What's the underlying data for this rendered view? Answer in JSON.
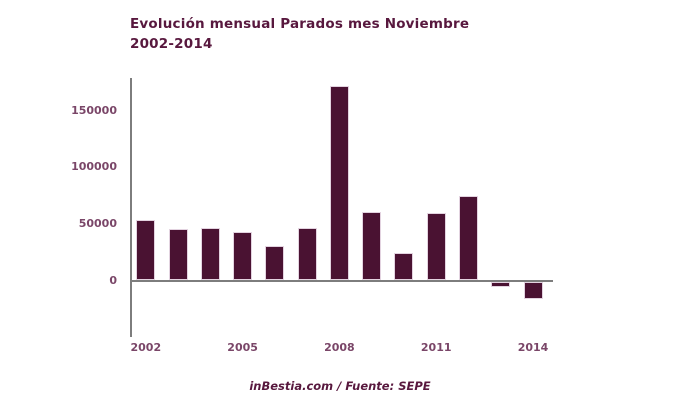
{
  "title": {
    "line1": "Evolución mensual Parados mes Noviembre",
    "line2": "2002-2014"
  },
  "footer": {
    "text": "inBestia.com / Fuente: SEPE"
  },
  "colors": {
    "bar": "#4a1232",
    "bar_border": "#e3d3e0",
    "axis": "#7d7d7d",
    "tick_label": "#7a4668",
    "title_text": "#58183e"
  },
  "chart_data": {
    "type": "bar",
    "title": "Evolución mensual Parados mes Noviembre 2002-2014",
    "categories": [
      2002,
      2003,
      2004,
      2005,
      2006,
      2007,
      2008,
      2009,
      2010,
      2011,
      2012,
      2013,
      2014
    ],
    "values": [
      52500,
      44500,
      45500,
      42000,
      29500,
      45500,
      171000,
      60000,
      24000,
      59000,
      74000,
      -4000,
      -15000
    ],
    "xticks": [
      "2002",
      "2005",
      "2008",
      "2011",
      "2014"
    ],
    "yticks": [
      0,
      50000,
      100000,
      150000
    ],
    "ylim": [
      -20000,
      178000
    ],
    "xlabel": "",
    "ylabel": "",
    "grid": false,
    "legend": "none",
    "source": "inBestia.com / Fuente: SEPE"
  }
}
